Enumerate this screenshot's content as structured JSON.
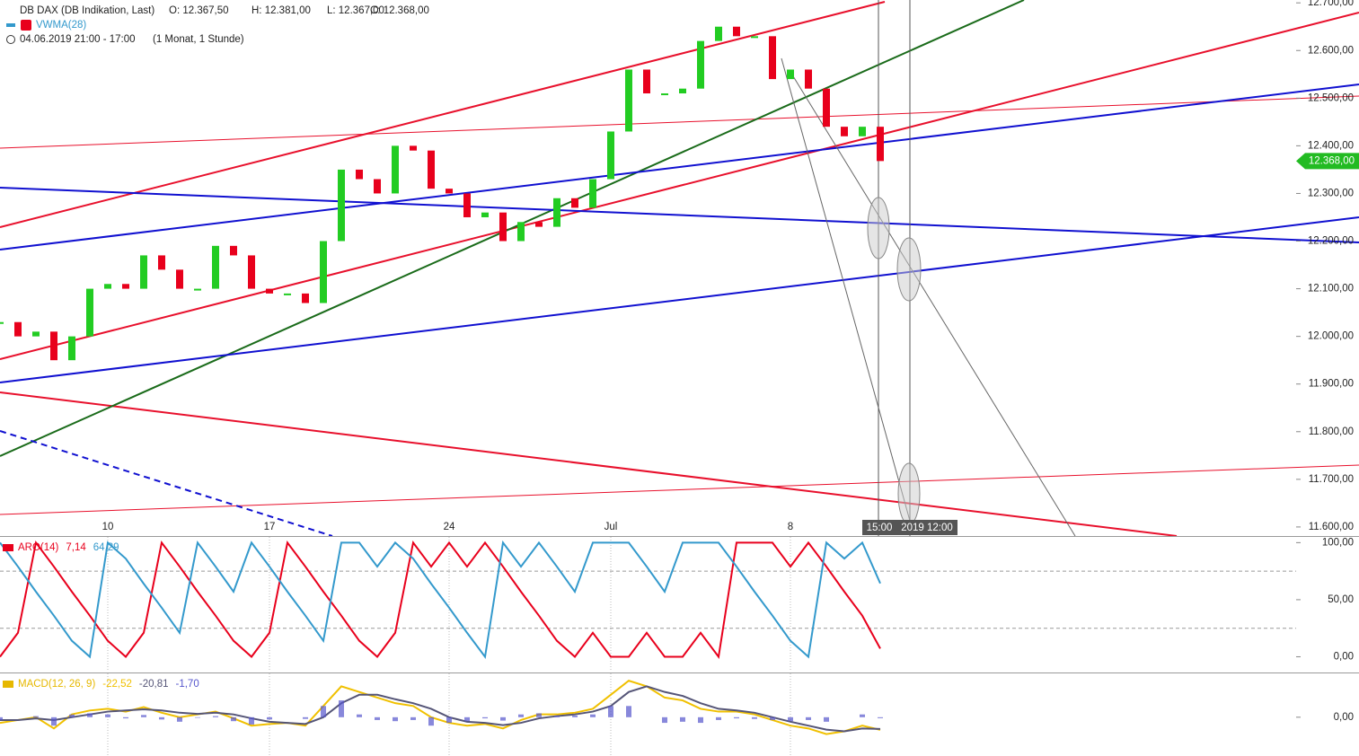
{
  "header": {
    "instrument": "DB DAX (DB Indikation, Last)",
    "open": "O: 12.367,50",
    "high": "H: 12.381,00",
    "low": "L: 12.367,00",
    "close": "C: 12.368,00",
    "indicator": "VWMA(28)",
    "range": "04.06.2019 21:00 - 17:00",
    "period": "(1 Monat, 1 Stunde)",
    "cursor_time": "15:00",
    "cursor_time2": "2019 12:00"
  },
  "chart_data": [
    {
      "type": "candle-line",
      "up_color": "#22cc22",
      "down_color": "#e8001c",
      "categories": [
        null,
        null,
        null,
        null,
        null,
        null,
        "10",
        null,
        null,
        null,
        null,
        null,
        null,
        null,
        null,
        "17",
        null,
        null,
        null,
        null,
        null,
        null,
        null,
        null,
        null,
        "24",
        null,
        null,
        null,
        null,
        null,
        null,
        null,
        null,
        "Jul",
        null,
        null,
        null,
        null,
        null,
        null,
        null,
        null,
        null,
        "8",
        null,
        null,
        null,
        null,
        null
      ],
      "values": [
        12030,
        12000,
        12010,
        11950,
        12000,
        12100,
        12110,
        12100,
        12170,
        12140,
        12100,
        12100,
        12190,
        12170,
        12100,
        12090,
        12090,
        12070,
        12200,
        12350,
        12330,
        12300,
        12400,
        12390,
        12310,
        12300,
        12250,
        12260,
        12200,
        12240,
        12230,
        12290,
        12270,
        12330,
        12430,
        12560,
        12510,
        12510,
        12520,
        12620,
        12650,
        12630,
        12630,
        12540,
        12560,
        12520,
        12440,
        12420,
        12440,
        12368
      ],
      "last_label": "12.368,00",
      "last_color": "#22bb22",
      "ylim": [
        11581,
        12706
      ],
      "yticks": [
        {
          "value": 11600,
          "label": "11.600,00"
        },
        {
          "value": 11700,
          "label": "11.700,00"
        },
        {
          "value": 11800,
          "label": "11.800,00"
        },
        {
          "value": 11900,
          "label": "11.900,00"
        },
        {
          "value": 12000,
          "label": "12.000,00"
        },
        {
          "value": 12100,
          "label": "12.100,00"
        },
        {
          "value": 12200,
          "label": "12.200,00"
        },
        {
          "value": 12300,
          "label": "12.300,00"
        },
        {
          "value": 12400,
          "label": "12.400,00"
        },
        {
          "value": 12500,
          "label": "12.500,00"
        },
        {
          "value": 12600,
          "label": "12.600,00"
        },
        {
          "value": 12700,
          "label": "12.700,00"
        }
      ]
    },
    {
      "type": "line",
      "title": "ARO(14)",
      "title_color": "#e8001c",
      "series": [
        {
          "color": "#e8001c",
          "last_label": "7,14",
          "values": [
            0,
            21,
            100,
            79,
            57,
            36,
            14,
            0,
            21,
            100,
            79,
            57,
            36,
            14,
            0,
            21,
            100,
            79,
            57,
            36,
            14,
            0,
            21,
            100,
            79,
            100,
            79,
            100,
            79,
            57,
            36,
            14,
            0,
            21,
            0,
            0,
            21,
            0,
            0,
            21,
            0,
            100,
            100,
            100,
            79,
            100,
            79,
            57,
            36,
            7.14
          ]
        },
        {
          "color": "#3399cc",
          "last_label": "64,29",
          "values": [
            100,
            79,
            57,
            36,
            14,
            0,
            100,
            86,
            64,
            43,
            21,
            100,
            79,
            57,
            100,
            79,
            57,
            36,
            14,
            100,
            100,
            79,
            100,
            86,
            64,
            43,
            21,
            0,
            100,
            79,
            100,
            79,
            57,
            100,
            100,
            100,
            79,
            57,
            100,
            100,
            100,
            79,
            57,
            36,
            14,
            0,
            100,
            86,
            100,
            64.29
          ]
        }
      ],
      "ylim": [
        -13,
        105
      ],
      "yticks": [
        {
          "value": 0,
          "label": "0,00"
        },
        {
          "value": 50,
          "label": "50,00"
        },
        {
          "value": 100,
          "label": "100,00"
        }
      ],
      "levels": [
        25,
        75
      ]
    },
    {
      "type": "macd",
      "title": "MACD(12, 26, 9)",
      "title_color": "#e6b800",
      "series": [
        {
          "color": "#f0c000",
          "last_label": "-22,52",
          "values": [
            -10,
            -5,
            0,
            -20,
            5,
            12,
            15,
            10,
            18,
            8,
            0,
            5,
            10,
            -2,
            -15,
            -12,
            -10,
            -15,
            20,
            55,
            45,
            35,
            25,
            20,
            0,
            -10,
            -15,
            -12,
            -20,
            -5,
            5,
            5,
            8,
            15,
            40,
            65,
            55,
            35,
            30,
            15,
            10,
            10,
            5,
            -5,
            -15,
            -20,
            -30,
            -25,
            -15,
            -22.52
          ]
        },
        {
          "color": "#555577",
          "last_label": "-20,81",
          "values": [
            -5,
            -5,
            -2,
            -5,
            0,
            5,
            10,
            12,
            14,
            12,
            8,
            6,
            8,
            5,
            -2,
            -8,
            -10,
            -12,
            0,
            25,
            40,
            40,
            32,
            25,
            15,
            0,
            -8,
            -10,
            -14,
            -10,
            -2,
            2,
            5,
            10,
            20,
            45,
            55,
            45,
            38,
            25,
            15,
            12,
            8,
            0,
            -8,
            -15,
            -22,
            -25,
            -20,
            -20.81
          ]
        },
        {
          "color": "#5555cc",
          "last_label": "-1,70",
          "bars": true,
          "values": [
            -5,
            0,
            2,
            -15,
            5,
            7,
            5,
            -2,
            4,
            -4,
            -8,
            -1,
            2,
            -7,
            -13,
            -4,
            0,
            -3,
            20,
            30,
            5,
            -5,
            -7,
            -5,
            -15,
            -10,
            -7,
            -2,
            -6,
            5,
            7,
            3,
            3,
            5,
            20,
            20,
            0,
            -10,
            -8,
            -10,
            -5,
            -2,
            -3,
            -5,
            -7,
            -5,
            -8,
            0,
            5,
            -1.7
          ]
        }
      ],
      "ylim": [
        -69,
        78
      ],
      "yticks": [
        {
          "value": 0,
          "label": "0,00"
        }
      ]
    }
  ]
}
